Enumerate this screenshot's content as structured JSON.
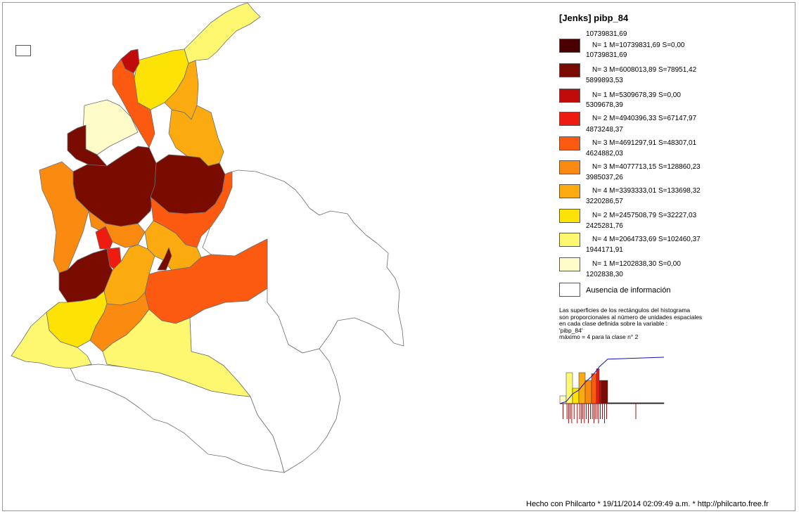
{
  "map": {
    "title": "[Jenks] pibp_84",
    "absence_color": "#ffffff",
    "class_colors": [
      "#4a0000",
      "#7a0b00",
      "#c10a0a",
      "#ee1c10",
      "#fb5a10",
      "#fb8a10",
      "#fbab10",
      "#fce205",
      "#fdf870",
      "#fefcc8"
    ],
    "bounds": [
      "10739831,69",
      "10739831,69",
      "5899893,53",
      "5309678,39",
      "4873248,37",
      "4624882,03",
      "3985037,26",
      "3220286,57",
      "2425281,76",
      "1944171,91",
      "1202838,30"
    ],
    "classes": [
      {
        "stat": "N= 1  M=10739831,69  S=0,00",
        "color": "#4a0000"
      },
      {
        "stat": "N= 3  M=6008013,89  S=78951,42",
        "color": "#7a0b00"
      },
      {
        "stat": "N= 1  M=5309678,39  S=0,00",
        "color": "#c10a0a"
      },
      {
        "stat": "N= 2  M=4940396,33  S=67147,97",
        "color": "#ee1c10"
      },
      {
        "stat": "N= 3  M=4691297,91  S=48307,01",
        "color": "#fb5a10"
      },
      {
        "stat": "N= 3  M=4077713,15  S=128860,23",
        "color": "#fb8a10"
      },
      {
        "stat": "N= 4  M=3393333,01  S=133698,32",
        "color": "#fbab10"
      },
      {
        "stat": "N= 2  M=2457508,79  S=32227,03",
        "color": "#fce205"
      },
      {
        "stat": "N= 4  M=2064733,69  S=102460,37",
        "color": "#fdf870"
      },
      {
        "stat": "N= 1  M=1202838,30  S=0,00",
        "color": "#fefcc8"
      }
    ],
    "absence_label": "Ausencia de información",
    "note_lines": [
      "Las superficies de los rectángulos del histograma",
      "son proporcionales al número de unidades espaciales",
      "en cada clase definida sobre la variable :",
      "'pibp_84'",
      "máximo = 4 para la clase n° 2"
    ],
    "histogram": {
      "class_counts": [
        1,
        3,
        1,
        2,
        3,
        3,
        4,
        2,
        4,
        1
      ],
      "cumulative_line_color": "#1010c0",
      "tick_color": "#a01010"
    },
    "footer": "Hecho con Philcarto * 19/11/2014 02:09:49 a.m. * http://philcarto.free.fr"
  }
}
